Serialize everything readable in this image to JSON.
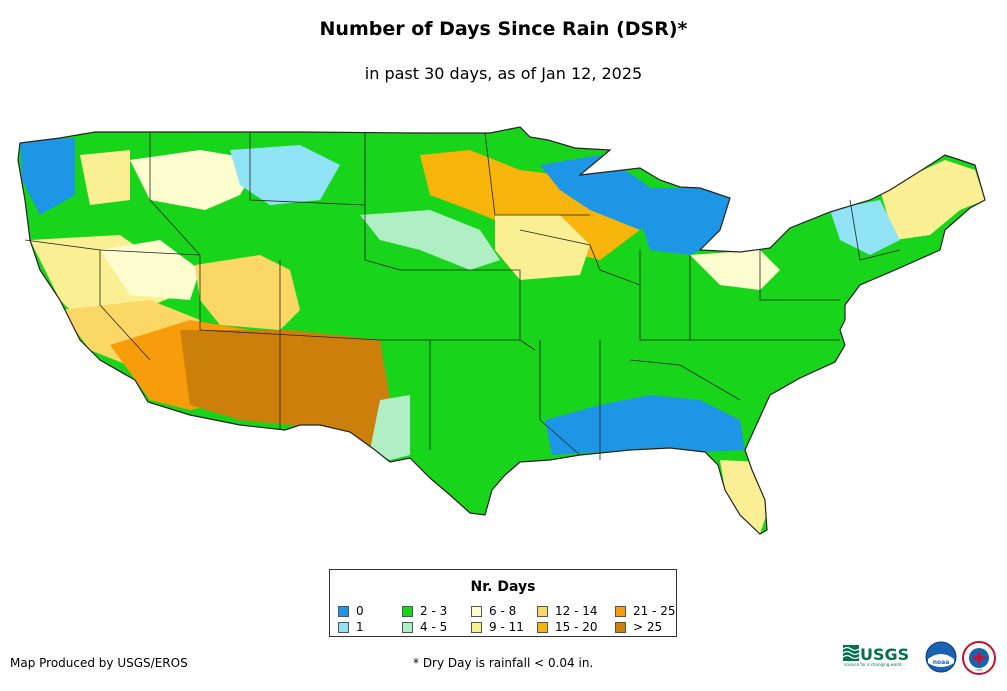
{
  "title": "Number of Days Since Rain (DSR)*",
  "subtitle": "in past 30 days, as of Jan 12, 2025",
  "legend": {
    "title": "Nr. Days",
    "items": [
      {
        "label": "0",
        "color": "#1e96e6"
      },
      {
        "label": "1",
        "color": "#8fe3f5"
      },
      {
        "label": "2 - 3",
        "color": "#18d41a"
      },
      {
        "label": "4 - 5",
        "color": "#b0efc6"
      },
      {
        "label": "6 - 8",
        "color": "#fefdd0"
      },
      {
        "label": "9 - 11",
        "color": "#fbef93"
      },
      {
        "label": "12 - 14",
        "color": "#fbd766"
      },
      {
        "label": "15 - 20",
        "color": "#f7b40b"
      },
      {
        "label": "21 - 25",
        "color": "#f79d0b"
      },
      {
        "label": "> 25",
        "color": "#cc7f0a"
      }
    ]
  },
  "credit": "Map Produced by USGS/EROS",
  "footnote": "* Dry Day is rainfall < 0.04 in.",
  "logos": {
    "usgs": "USGS",
    "usgs_tagline": "science for a changing world",
    "noaa": "noaa",
    "nws": "nws"
  }
}
